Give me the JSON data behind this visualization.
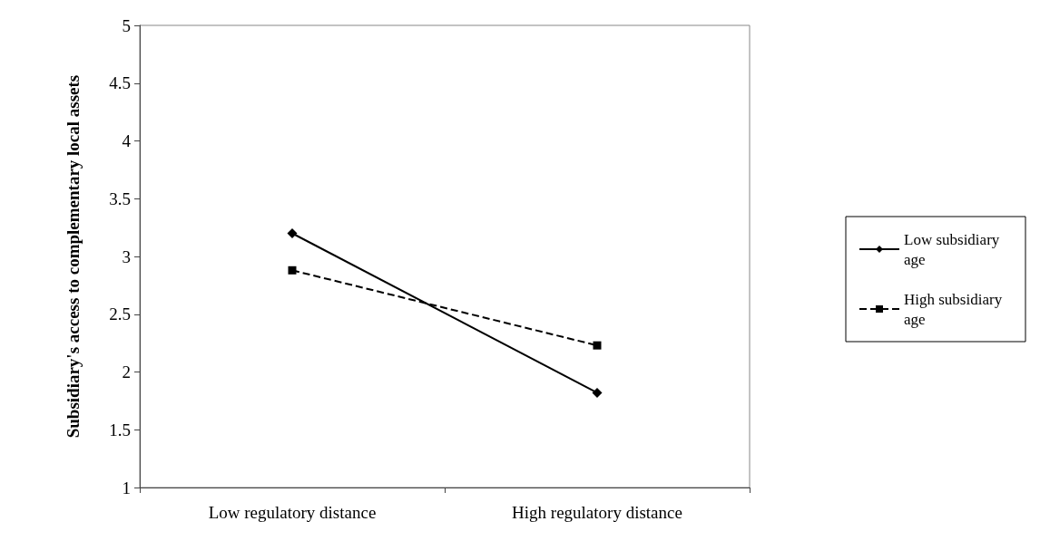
{
  "chart_data": {
    "type": "line",
    "ylabel": "Subsidiary's access to complementary local assets",
    "categories": [
      "Low regulatory distance",
      "High regulatory distance"
    ],
    "series": [
      {
        "name": "Low subsidiary age",
        "color": "#000000",
        "values": [
          3.2,
          1.82
        ],
        "marker": "diamond",
        "line_style": "solid"
      },
      {
        "name": "High subsidiary age",
        "color": "#000000",
        "values": [
          2.88,
          2.23
        ],
        "marker": "square",
        "line_style": "dashed"
      }
    ],
    "ylim": [
      1,
      5
    ],
    "yticks": [
      1,
      1.5,
      2,
      2.5,
      3,
      3.5,
      4,
      4.5,
      5
    ],
    "grid": false,
    "legend": "right"
  }
}
